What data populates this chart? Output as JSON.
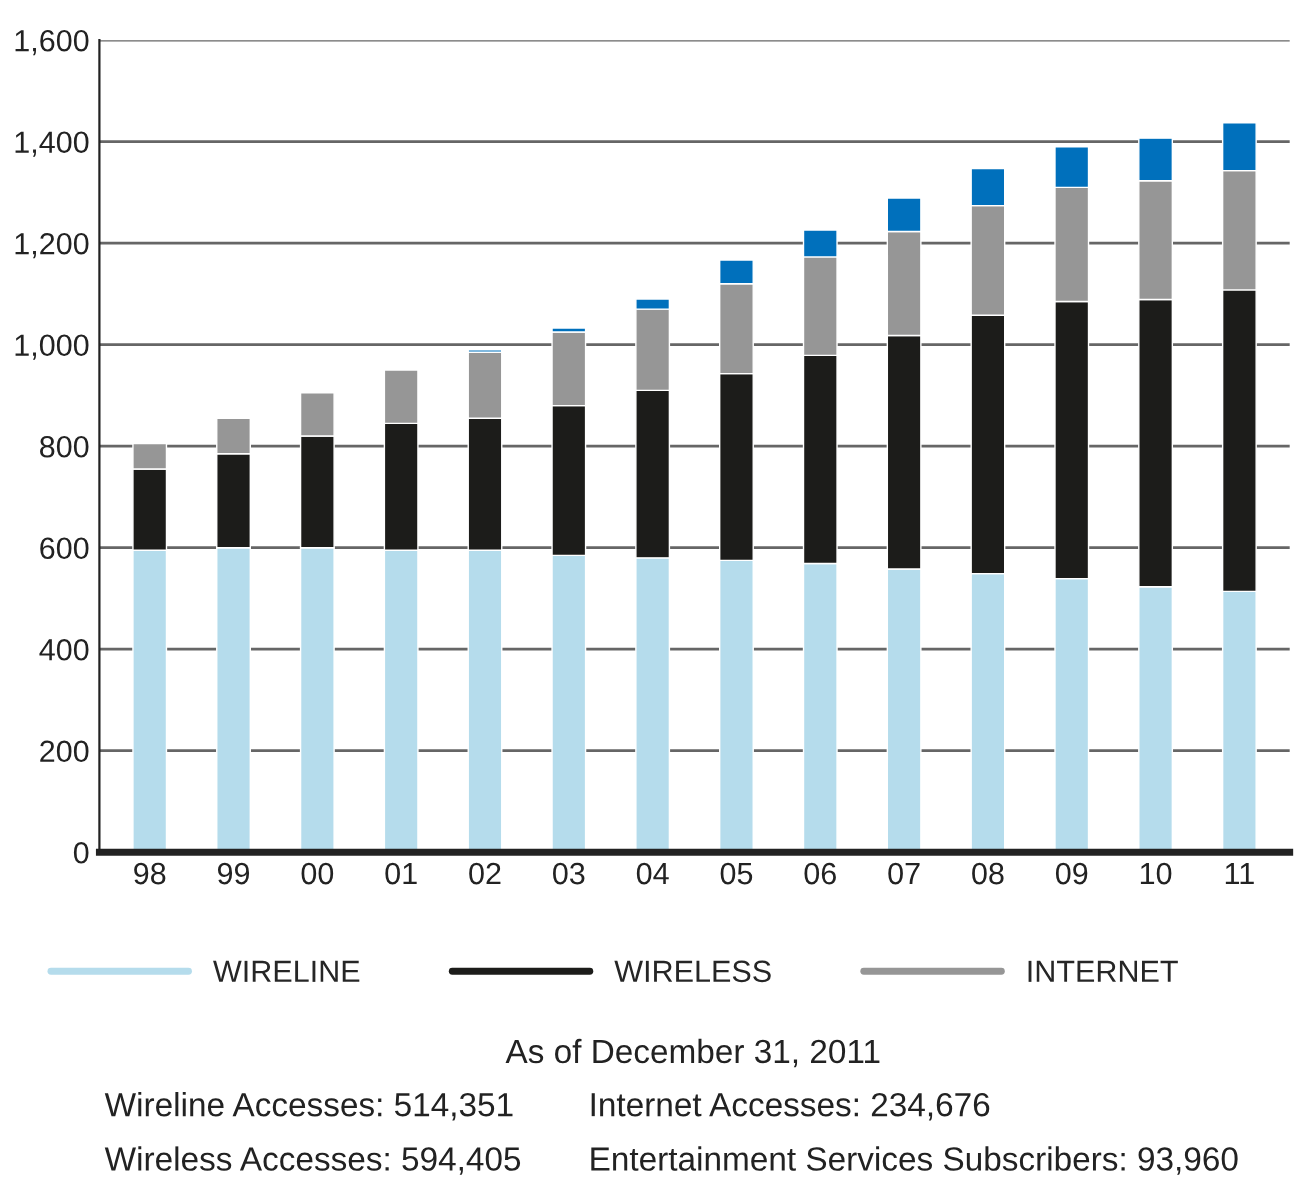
{
  "chart_data": {
    "type": "bar",
    "stacked": true,
    "categories": [
      "98",
      "99",
      "00",
      "01",
      "02",
      "03",
      "04",
      "05",
      "06",
      "07",
      "08",
      "09",
      "10",
      "11"
    ],
    "series": [
      {
        "name": "WIRELINE",
        "color": "#b5dcec",
        "values": [
          595,
          600,
          600,
          595,
          595,
          585,
          580,
          575,
          569,
          558,
          549,
          539,
          523,
          514
        ]
      },
      {
        "name": "WIRELESS",
        "color": "#1c1c1a",
        "values": [
          160,
          185,
          220,
          250,
          260,
          295,
          330,
          368,
          410,
          460,
          509,
          546,
          566,
          594
        ]
      },
      {
        "name": "INTERNET",
        "color": "#969696",
        "values": [
          50,
          70,
          85,
          105,
          130,
          145,
          160,
          177,
          194,
          205,
          216,
          225,
          234,
          235
        ]
      },
      {
        "color": "#0070bc",
        "values": [
          null,
          null,
          null,
          null,
          5,
          8,
          20,
          47,
          53,
          66,
          73,
          80,
          84,
          94
        ]
      }
    ],
    "ylim": [
      0,
      1600
    ],
    "yticks": [
      0,
      {
        "value": 200,
        "label": "200"
      },
      {
        "value": 400,
        "label": "400"
      },
      {
        "value": 600,
        "label": "600"
      },
      {
        "value": 800,
        "label": "800"
      },
      {
        "value": 1000,
        "label": "1,000"
      },
      {
        "value": 1200,
        "label": "1,200"
      },
      {
        "value": 1400,
        "label": "1,400"
      },
      {
        "value": 1600,
        "label": "1,600"
      }
    ],
    "grid": "y",
    "legend": "bottom",
    "annotations": [
      "As of December 31, 2011",
      "Wireline Accesses: 514,351",
      "Wireless Accesses: 594,405",
      "Internet Accesses: 234,676",
      "Entertainment Services Subscribers: 93,960"
    ]
  }
}
